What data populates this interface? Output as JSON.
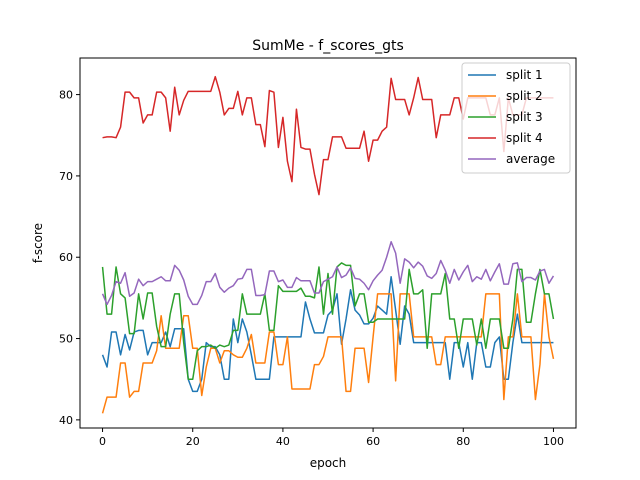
{
  "chart_data": {
    "type": "line",
    "title": "SumMe - f_scores_gts",
    "xlabel": "epoch",
    "ylabel": "f-score",
    "xlim": [
      -5,
      105
    ],
    "ylim": [
      39,
      84.5
    ],
    "xticks": [
      0,
      20,
      40,
      60,
      80,
      100
    ],
    "yticks": [
      40,
      50,
      60,
      70,
      80
    ],
    "grid": false,
    "legend_position": "top-right",
    "series": [
      {
        "name": "split 1",
        "color": "#1f77b4",
        "values": [
          48.0,
          46.5,
          50.8,
          50.8,
          48.0,
          50.5,
          48.6,
          50.8,
          51.0,
          51.0,
          48.0,
          49.5,
          49.5,
          49.5,
          50.8,
          49.0,
          51.2,
          51.2,
          51.2,
          45.0,
          43.5,
          43.5,
          45.0,
          49.5,
          49.0,
          49.0,
          48.0,
          45.0,
          45.0,
          52.4,
          49.5,
          52.4,
          50.8,
          48.0,
          45.0,
          45.0,
          45.0,
          45.0,
          50.2,
          50.2,
          50.2,
          50.2,
          50.2,
          50.2,
          50.2,
          54.5,
          52.4,
          50.7,
          50.7,
          50.7,
          52.9,
          53.5,
          55.5,
          49.3,
          52.4,
          56.0,
          53.5,
          52.9,
          51.8,
          51.8,
          52.5,
          54.0,
          53.5,
          53.0,
          57.6,
          53.5,
          49.3,
          54.0,
          53.0,
          49.5,
          49.5,
          49.5,
          49.5,
          49.5,
          49.5,
          49.5,
          49.5,
          45.0,
          49.5,
          49.5,
          46.5,
          49.5,
          45.0,
          49.5,
          49.5,
          46.5,
          46.5,
          49.5,
          50.2,
          45.0,
          45.0,
          49.5,
          53.0,
          49.5,
          49.5,
          49.5,
          49.5,
          49.5,
          49.5,
          49.5,
          49.5
        ]
      },
      {
        "name": "split 2",
        "color": "#ff7f0e",
        "values": [
          40.8,
          42.8,
          42.8,
          42.8,
          47.0,
          47.0,
          42.8,
          43.5,
          43.5,
          47.0,
          47.0,
          47.0,
          48.5,
          52.8,
          48.8,
          48.8,
          48.8,
          48.8,
          52.8,
          52.8,
          48.8,
          48.8,
          43.0,
          46.5,
          48.8,
          48.8,
          47.0,
          48.5,
          48.5,
          48.0,
          47.7,
          47.7,
          48.8,
          50.5,
          47.0,
          47.0,
          47.0,
          50.8,
          50.8,
          46.8,
          46.8,
          50.2,
          43.8,
          43.8,
          43.8,
          43.8,
          43.8,
          46.8,
          46.8,
          47.8,
          50.2,
          50.2,
          50.2,
          50.2,
          43.5,
          43.5,
          48.8,
          48.8,
          48.8,
          44.6,
          50.2,
          55.5,
          55.5,
          55.5,
          55.5,
          44.8,
          55.5,
          55.5,
          55.5,
          50.2,
          50.2,
          50.2,
          50.2,
          50.2,
          46.8,
          46.8,
          50.2,
          50.2,
          50.2,
          50.2,
          50.2,
          50.2,
          50.2,
          50.2,
          50.2,
          55.5,
          55.5,
          55.5,
          55.5,
          42.5,
          50.2,
          50.2,
          55.5,
          50.2,
          50.2,
          50.2,
          42.5,
          46.8,
          55.5,
          50.2,
          47.5
        ]
      },
      {
        "name": "split 3",
        "color": "#2ca02c",
        "values": [
          58.8,
          53.0,
          53.0,
          58.8,
          55.5,
          55.0,
          50.6,
          50.6,
          55.5,
          52.4,
          55.6,
          55.6,
          51.5,
          49.0,
          49.0,
          53.0,
          55.5,
          55.5,
          49.5,
          45.0,
          45.0,
          48.5,
          49.0,
          49.0,
          49.2,
          48.8,
          49.2,
          49.0,
          49.2,
          51.0,
          51.0,
          55.5,
          53.0,
          53.0,
          53.0,
          53.0,
          55.5,
          51.0,
          51.0,
          56.5,
          55.8,
          55.8,
          55.8,
          55.8,
          56.2,
          55.2,
          55.2,
          55.0,
          58.8,
          53.0,
          58.0,
          53.0,
          58.8,
          59.3,
          59.0,
          59.0,
          54.0,
          55.5,
          55.5,
          52.0,
          52.0,
          52.4,
          52.4,
          52.4,
          52.4,
          52.4,
          52.4,
          52.4,
          58.5,
          55.5,
          55.5,
          56.0,
          48.8,
          55.5,
          55.5,
          55.5,
          58.0,
          52.4,
          52.4,
          48.8,
          52.4,
          52.4,
          52.4,
          49.2,
          52.4,
          48.8,
          52.4,
          52.4,
          52.4,
          48.8,
          48.8,
          52.4,
          58.5,
          58.5,
          52.0,
          52.0,
          55.5,
          58.5,
          55.5,
          55.5,
          52.4
        ]
      },
      {
        "name": "split 4",
        "color": "#d62728",
        "values": [
          74.7,
          74.8,
          74.8,
          74.7,
          76.0,
          80.3,
          80.3,
          79.6,
          79.6,
          76.5,
          77.5,
          77.5,
          80.3,
          80.3,
          79.6,
          75.5,
          80.9,
          77.5,
          79.3,
          80.4,
          80.4,
          80.4,
          80.4,
          80.4,
          80.4,
          82.2,
          80.3,
          77.5,
          78.3,
          78.3,
          80.4,
          77.5,
          79.6,
          79.6,
          76.3,
          76.3,
          73.6,
          80.5,
          80.3,
          73.5,
          77.2,
          71.8,
          69.3,
          78.2,
          73.5,
          73.3,
          73.3,
          70.2,
          67.7,
          72.0,
          72.0,
          74.8,
          74.8,
          74.8,
          73.4,
          73.4,
          73.4,
          73.4,
          75.5,
          71.8,
          74.4,
          74.4,
          75.5,
          76.0,
          82.0,
          79.4,
          79.4,
          79.4,
          77.5,
          79.6,
          82.1,
          79.4,
          79.4,
          79.4,
          74.7,
          77.5,
          77.5,
          77.5,
          79.6,
          79.6,
          77.0,
          79.6,
          79.6,
          79.6,
          79.6,
          79.6,
          77.5,
          77.5,
          79.6,
          73.0,
          79.6,
          77.5,
          77.5,
          77.5,
          79.6,
          79.6,
          79.6,
          79.6,
          79.6,
          79.6,
          79.6
        ]
      },
      {
        "name": "average",
        "color": "#9467bd",
        "values": [
          55.5,
          54.2,
          55.3,
          57.0,
          56.8,
          58.1,
          55.2,
          55.6,
          57.3,
          56.5,
          57.0,
          57.0,
          57.3,
          57.6,
          57.1,
          57.1,
          59.0,
          58.4,
          57.2,
          55.2,
          54.2,
          54.2,
          55.3,
          57.0,
          57.0,
          58.0,
          56.3,
          55.7,
          56.2,
          56.5,
          57.3,
          57.4,
          58.5,
          58.5,
          55.3,
          55.3,
          55.4,
          58.3,
          58.3,
          57.0,
          57.2,
          56.3,
          56.3,
          57.5,
          57.1,
          57.1,
          57.1,
          55.6,
          55.6,
          57.0,
          57.3,
          57.6,
          58.8,
          57.5,
          57.8,
          58.7,
          57.4,
          57.3,
          56.8,
          56.0,
          57.1,
          57.8,
          58.4,
          60.0,
          61.9,
          60.5,
          56.8,
          59.8,
          59.4,
          58.7,
          59.4,
          58.9,
          57.7,
          57.4,
          58.0,
          59.6,
          58.4,
          56.8,
          58.5,
          57.2,
          58.2,
          59.0,
          57.0,
          57.6,
          57.3,
          58.5,
          57.1,
          58.2,
          59.2,
          56.7,
          56.7,
          59.2,
          59.3,
          57.0,
          57.5,
          57.5,
          57.2,
          58.3,
          58.5,
          56.8,
          57.7
        ]
      }
    ]
  }
}
